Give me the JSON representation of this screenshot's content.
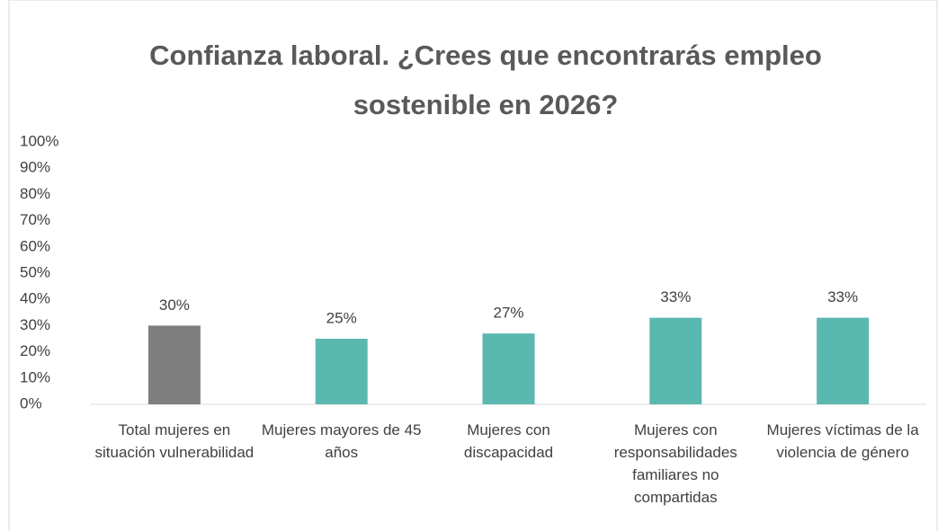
{
  "chart_data": {
    "type": "bar",
    "title": "Confianza laboral. ¿Crees que encontrarás empleo sostenible en 2026?",
    "categories": [
      "Total mujeres en situación vulnerabilidad",
      "Mujeres mayores de 45 años",
      "Mujeres con discapacidad",
      "Mujeres con responsabilidades familiares no compartidas",
      "Mujeres víctimas de la violencia de género"
    ],
    "values": [
      30,
      25,
      27,
      33,
      33
    ],
    "value_labels": [
      "30%",
      "25%",
      "27%",
      "33%",
      "33%"
    ],
    "colors": [
      "#7f7f7f",
      "#5bb8b0",
      "#5bb8b0",
      "#5bb8b0",
      "#5bb8b0"
    ],
    "ylim": [
      0,
      100
    ],
    "yticks": [
      {
        "value": 0,
        "label": "0%"
      },
      {
        "value": 10,
        "label": "10%"
      },
      {
        "value": 20,
        "label": "20%"
      },
      {
        "value": 30,
        "label": "30%"
      },
      {
        "value": 40,
        "label": "40%"
      },
      {
        "value": 50,
        "label": "50%"
      },
      {
        "value": 60,
        "label": "60%"
      },
      {
        "value": 70,
        "label": "70%"
      },
      {
        "value": 80,
        "label": "80%"
      },
      {
        "value": 90,
        "label": "90%"
      },
      {
        "value": 100,
        "label": "100%"
      }
    ],
    "grid": false
  }
}
